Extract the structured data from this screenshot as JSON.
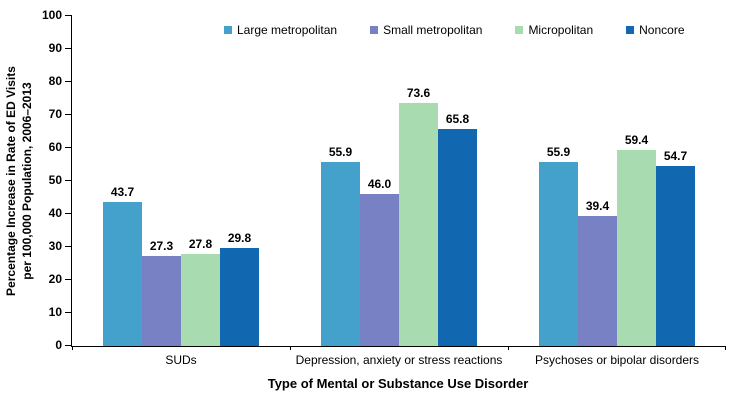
{
  "chart_data": {
    "type": "bar",
    "title": "",
    "categories": [
      "SUDs",
      "Depression, anxiety or stress reactions",
      "Psychoses or bipolar disorders"
    ],
    "series": [
      {
        "name": "Large metropolitan",
        "color": "#44A1CB",
        "values": [
          43.7,
          55.9,
          55.9
        ]
      },
      {
        "name": "Small metropolitan",
        "color": "#7881C4",
        "values": [
          27.3,
          46.0,
          39.4
        ]
      },
      {
        "name": "Micropolitan",
        "color": "#A9DBB1",
        "values": [
          27.8,
          73.6,
          59.4
        ]
      },
      {
        "name": "Noncore",
        "color": "#1268B0",
        "values": [
          29.8,
          65.8,
          54.7
        ]
      }
    ],
    "ylabel_line1": "Percentage Increase in Rate of ED Visits",
    "ylabel_line2": "per 100,000 Population, 2006–2013",
    "xlabel": "Type of Mental or Substance Use Disorder",
    "ylim": [
      0,
      100
    ],
    "ytick_step": 10,
    "grid": false,
    "legend_position": "top",
    "value_label_decimals": 1,
    "axis_color": "#000000",
    "text_color": "#000000"
  }
}
